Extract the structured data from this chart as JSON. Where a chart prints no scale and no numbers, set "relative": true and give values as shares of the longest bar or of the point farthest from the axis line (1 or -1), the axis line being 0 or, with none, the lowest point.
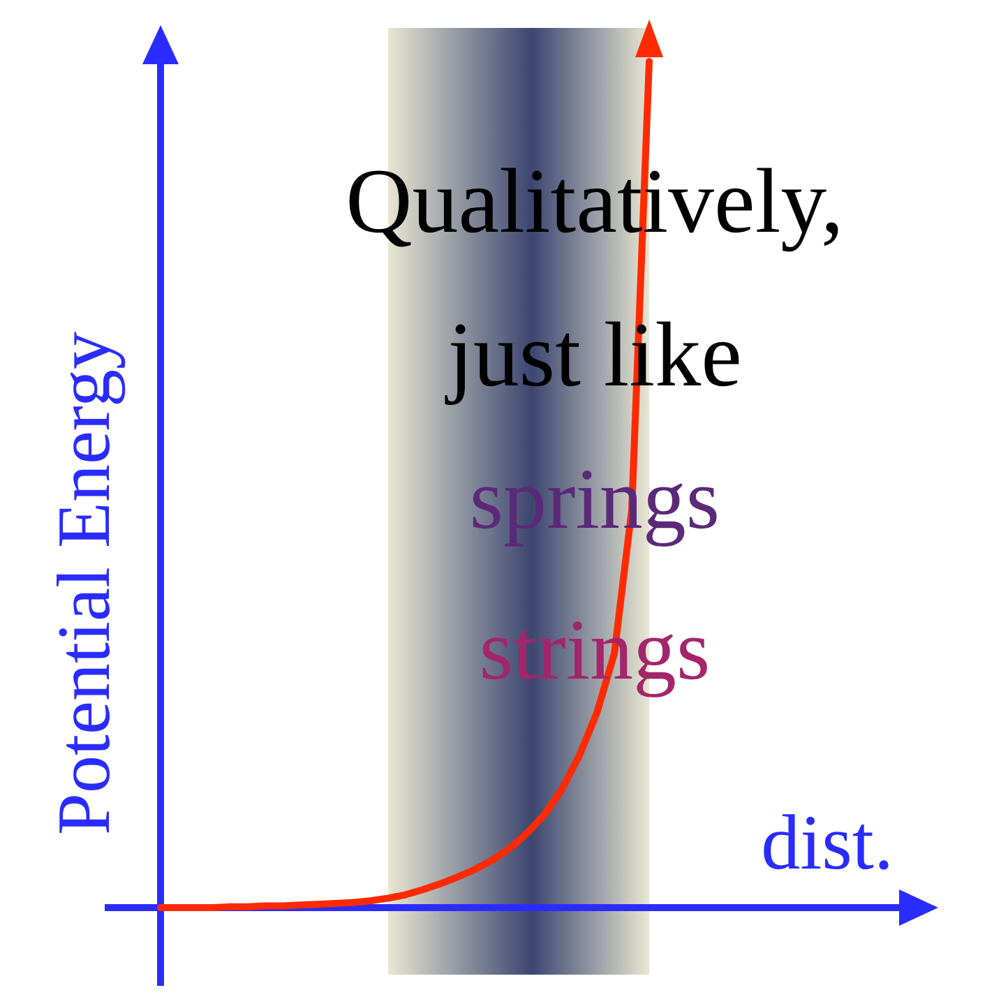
{
  "chart_data": {
    "type": "line",
    "relative": true,
    "xlabel": "dist.",
    "ylabel": "Potential Energy",
    "categories": [
      null,
      null,
      null,
      null,
      null,
      null,
      null,
      null,
      null,
      null,
      null,
      null,
      null,
      null,
      null,
      null,
      null,
      null,
      null,
      null,
      null,
      null,
      null,
      null,
      null,
      null,
      null,
      null,
      null
    ],
    "series": [
      {
        "color": "#ff2a00",
        "values": [
          0,
          0,
          0,
          0,
          0.001,
          0.001,
          0.002,
          0.002,
          0.003,
          0.004,
          0.005,
          0.006,
          0.008,
          0.011,
          0.015,
          0.021,
          0.028,
          0.036,
          0.045,
          0.056,
          0.07,
          0.088,
          0.11,
          0.14,
          0.18,
          0.23,
          0.3,
          0.47,
          1
        ]
      }
    ],
    "annotations": [
      "Qualitatively,",
      "just like",
      "springs",
      "strings"
    ]
  }
}
